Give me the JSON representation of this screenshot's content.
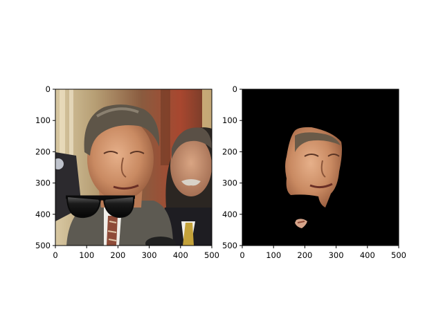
{
  "figure": {
    "panels": [
      {
        "name": "left-photo",
        "x_ticks": [
          "0",
          "100",
          "200",
          "300",
          "400",
          "500"
        ],
        "y_ticks": [
          "0",
          "100",
          "200",
          "300",
          "400",
          "500"
        ]
      },
      {
        "name": "right-masked-face",
        "x_ticks": [
          "0",
          "100",
          "200",
          "300",
          "400",
          "500"
        ],
        "y_ticks": [
          "0",
          "100",
          "200",
          "300",
          "400",
          "500"
        ]
      }
    ],
    "axis_range": {
      "x": [
        0,
        500
      ],
      "y": [
        0,
        500
      ]
    },
    "colors": {
      "axis": "#000000",
      "mask_background": "#000000",
      "sunglasses": "#151515",
      "skin": "#c98a62"
    }
  }
}
